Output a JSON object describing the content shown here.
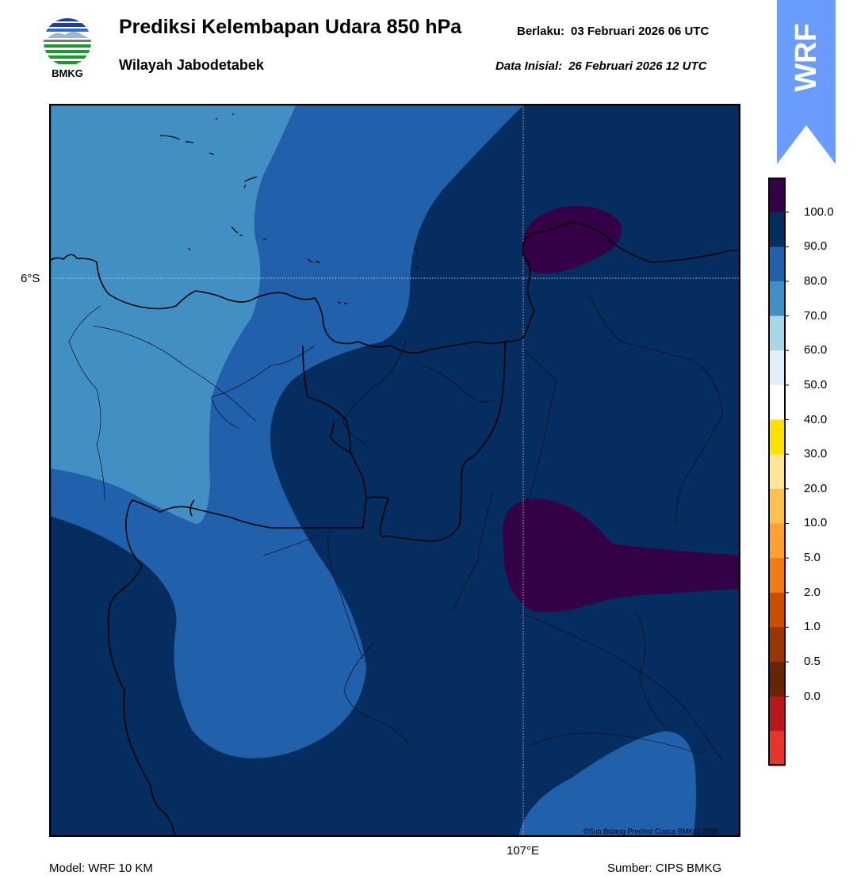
{
  "header": {
    "title": "Prediksi Kelembapan Udara 850 hPa",
    "subtitle": "Wilayah Jabodetabek",
    "valid_label": "Berlaku:",
    "valid_value": "03 Februari 2026 06 UTC",
    "init_label": "Data Inisial:",
    "init_value": "26 Februari 2026 12 UTC"
  },
  "logo": {
    "text": "BMKG",
    "icon": "bmkg-logo-icon"
  },
  "badge": {
    "text": "WRF",
    "color": "#6a9cff"
  },
  "map": {
    "lat_label": "6°S",
    "lon_label": "107°E",
    "copyright": "©Sub Bidang Prediksi Cuaca BMKG, 2020"
  },
  "footer": {
    "model": "Model: WRF 10 KM",
    "source": "Sumber: CIPS BMKG"
  },
  "colorbar": {
    "labels": [
      "100.0",
      "90.0",
      "80.0",
      "70.0",
      "60.0",
      "50.0",
      "40.0",
      "30.0",
      "20.0",
      "10.0",
      "5.0",
      "2.0",
      "1.0",
      "0.5",
      "0.0"
    ],
    "colors": [
      "#340046",
      "#062d5f",
      "#2160aa",
      "#4290c3",
      "#a9d6e6",
      "#e2eff8",
      "#ffffff",
      "#ffe000",
      "#ffe699",
      "#ffc04d",
      "#ffa033",
      "#f07b17",
      "#cc4c02",
      "#993404",
      "#662506",
      "#b8171e",
      "#e6352a"
    ]
  }
}
